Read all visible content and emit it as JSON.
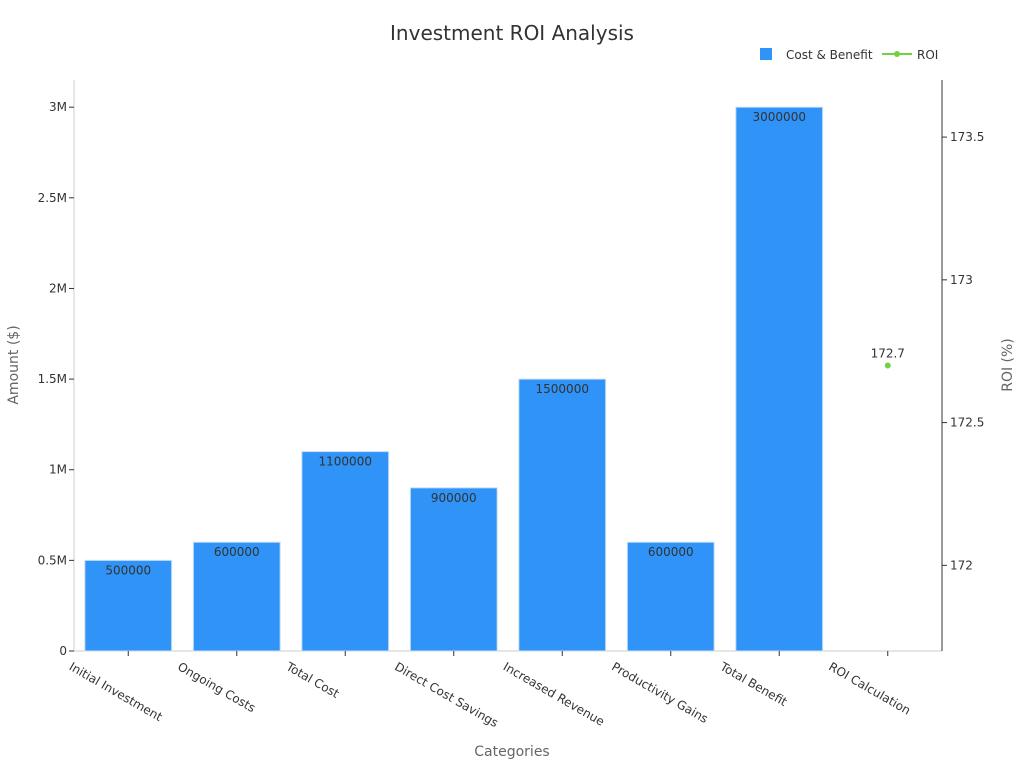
{
  "chart_data": {
    "type": "bar",
    "title": "Investment ROI Analysis",
    "xlabel": "Categories",
    "ylabel": "Amount ($)",
    "y2label": "ROI (%)",
    "categories": [
      "Initial Investment",
      "Ongoing Costs",
      "Total Cost",
      "Direct Cost Savings",
      "Increased Revenue",
      "Productivity Gains",
      "Total Benefit",
      "ROI Calculation"
    ],
    "series": [
      {
        "name": "Cost & Benefit",
        "type": "bar",
        "axis": "left",
        "color": "#2f93f8",
        "values": [
          500000,
          600000,
          1100000,
          900000,
          1500000,
          600000,
          3000000,
          null
        ],
        "labels": [
          "500000",
          "600000",
          "1100000",
          "900000",
          "1500000",
          "600000",
          "3000000",
          ""
        ]
      },
      {
        "name": "ROI",
        "type": "line",
        "axis": "right",
        "color": "#72d13f",
        "values": [
          null,
          null,
          null,
          null,
          null,
          null,
          null,
          172.7
        ],
        "labels": [
          "",
          "",
          "",
          "",
          "",
          "",
          "",
          "172.7"
        ]
      }
    ],
    "ylim": [
      0,
      3150000
    ],
    "y_ticks": [
      {
        "value": 0,
        "label": "0"
      },
      {
        "value": 500000,
        "label": "0.5M"
      },
      {
        "value": 1000000,
        "label": "1M"
      },
      {
        "value": 1500000,
        "label": "1.5M"
      },
      {
        "value": 2000000,
        "label": "2M"
      },
      {
        "value": 2500000,
        "label": "2.5M"
      },
      {
        "value": 3000000,
        "label": "3M"
      }
    ],
    "y2lim": [
      171.7,
      173.7
    ],
    "y2_ticks": [
      {
        "value": 172,
        "label": "172"
      },
      {
        "value": 172.5,
        "label": "172.5"
      },
      {
        "value": 173,
        "label": "173"
      },
      {
        "value": 173.5,
        "label": "173.5"
      }
    ],
    "grid": false,
    "legend_position": "top-right"
  }
}
